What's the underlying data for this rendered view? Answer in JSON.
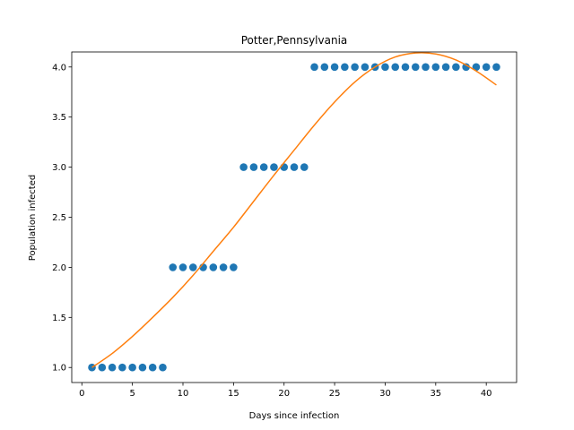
{
  "chart_data": {
    "type": "scatter",
    "title": "Potter,Pennsylvania",
    "xlabel": "Days since infection",
    "ylabel": "Population infected",
    "xlim": [
      -1,
      43
    ],
    "ylim": [
      0.85,
      4.15
    ],
    "xticks": [
      0,
      5,
      10,
      15,
      20,
      25,
      30,
      35,
      40
    ],
    "yticks": [
      1.0,
      1.5,
      2.0,
      2.5,
      3.0,
      3.5,
      4.0
    ],
    "ytick_labels": [
      "1.0",
      "1.5",
      "2.0",
      "2.5",
      "3.0",
      "3.5",
      "4.0"
    ],
    "grid": false,
    "series": [
      {
        "kind": "scatter",
        "color": "#1f77b4",
        "x": [
          1,
          2,
          3,
          4,
          5,
          6,
          7,
          8,
          9,
          10,
          11,
          12,
          13,
          14,
          15,
          16,
          17,
          18,
          19,
          20,
          21,
          22,
          23,
          24,
          25,
          26,
          27,
          28,
          29,
          30,
          31,
          32,
          33,
          34,
          35,
          36,
          37,
          38,
          39,
          40,
          41
        ],
        "y": [
          1,
          1,
          1,
          1,
          1,
          1,
          1,
          1,
          2,
          2,
          2,
          2,
          2,
          2,
          2,
          3,
          3,
          3,
          3,
          3,
          3,
          3,
          4,
          4,
          4,
          4,
          4,
          4,
          4,
          4,
          4,
          4,
          4,
          4,
          4,
          4,
          4,
          4,
          4,
          4,
          4
        ]
      },
      {
        "kind": "line",
        "color": "#ff7f0e",
        "x": [
          1,
          3,
          5,
          7,
          9,
          11,
          13,
          15,
          17,
          19,
          21,
          23,
          25,
          27,
          29,
          31,
          33,
          35,
          37,
          39,
          41
        ],
        "y": [
          1.0,
          1.14,
          1.31,
          1.5,
          1.7,
          1.92,
          2.16,
          2.4,
          2.66,
          2.92,
          3.17,
          3.42,
          3.65,
          3.85,
          4.0,
          4.1,
          4.14,
          4.13,
          4.07,
          3.96,
          3.82
        ]
      }
    ]
  }
}
